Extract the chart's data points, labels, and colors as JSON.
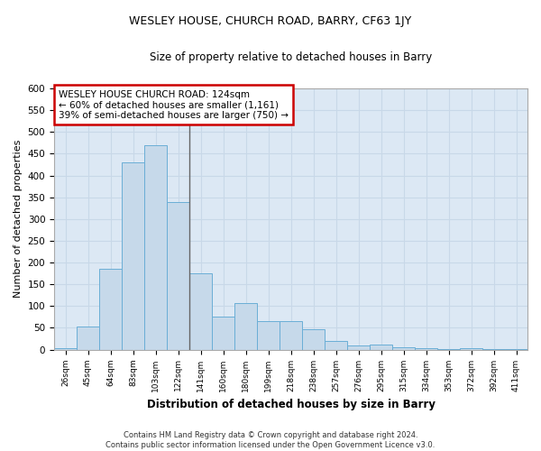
{
  "title": "WESLEY HOUSE, CHURCH ROAD, BARRY, CF63 1JY",
  "subtitle": "Size of property relative to detached houses in Barry",
  "xlabel": "Distribution of detached houses by size in Barry",
  "ylabel": "Number of detached properties",
  "footnote": "Contains HM Land Registry data © Crown copyright and database right 2024.\nContains public sector information licensed under the Open Government Licence v3.0.",
  "categories": [
    "26sqm",
    "45sqm",
    "64sqm",
    "83sqm",
    "103sqm",
    "122sqm",
    "141sqm",
    "160sqm",
    "180sqm",
    "199sqm",
    "218sqm",
    "238sqm",
    "257sqm",
    "276sqm",
    "295sqm",
    "315sqm",
    "334sqm",
    "353sqm",
    "372sqm",
    "392sqm",
    "411sqm"
  ],
  "values": [
    3,
    52,
    185,
    430,
    470,
    340,
    175,
    75,
    107,
    65,
    65,
    47,
    20,
    10,
    12,
    5,
    3,
    2,
    3,
    2,
    2
  ],
  "bar_color": "#c6d9ea",
  "bar_edge_color": "#6aaed6",
  "marker_label": "WESLEY HOUSE CHURCH ROAD: 124sqm\n← 60% of detached houses are smaller (1,161)\n39% of semi-detached houses are larger (750) →",
  "annotation_box_color": "#cc0000",
  "vline_color": "#666666",
  "grid_color": "#c8d8e8",
  "bg_color": "#dce8f4",
  "ylim": [
    0,
    600
  ],
  "yticks": [
    0,
    50,
    100,
    150,
    200,
    250,
    300,
    350,
    400,
    450,
    500,
    550,
    600
  ],
  "vline_index": 5.5
}
